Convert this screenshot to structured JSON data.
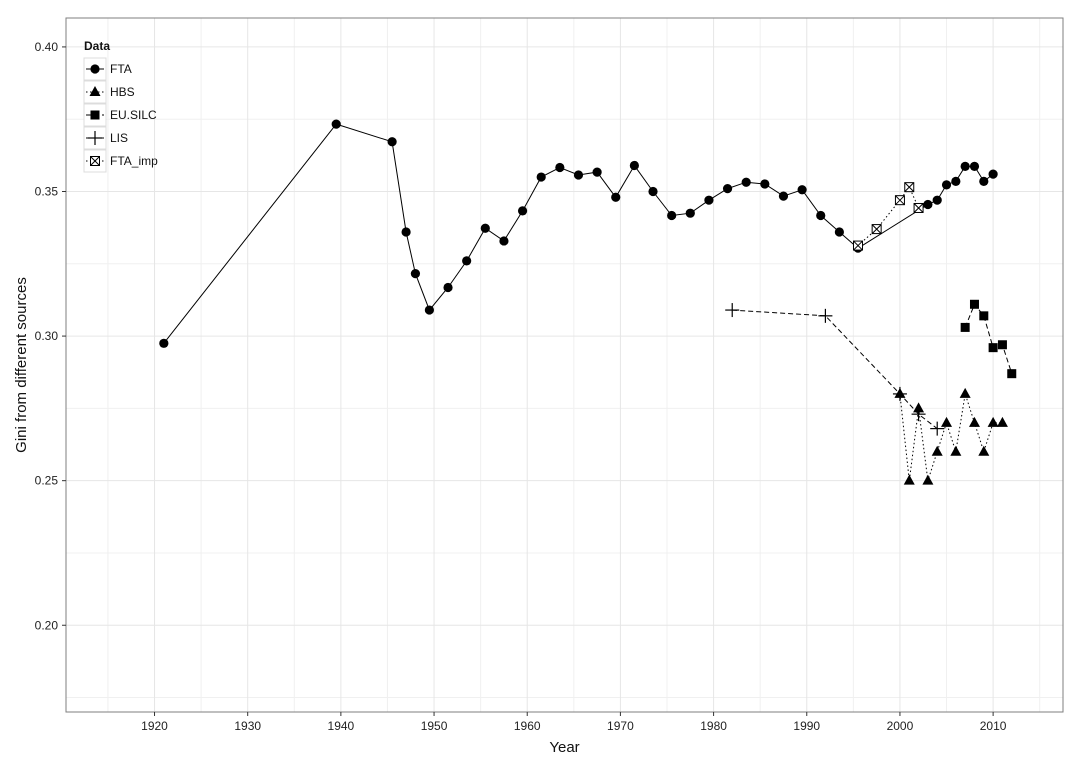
{
  "chart_data": {
    "type": "line",
    "title": "",
    "xlabel": "Year",
    "ylabel": "Gini from different sources",
    "xlim": [
      1911,
      1917.5
    ],
    "xlim_note": "",
    "x_range": [
      1910.5,
      2017.5
    ],
    "ylim": [
      0.17,
      0.41
    ],
    "xticks": [
      1920,
      1930,
      1940,
      1950,
      1960,
      1970,
      1980,
      1990,
      2000,
      2010
    ],
    "yticks": [
      0.2,
      0.25,
      0.3,
      0.35,
      0.4
    ],
    "ytick_labels": [
      "0.20",
      "0.25",
      "0.30",
      "0.35",
      "0.40"
    ],
    "grid": true,
    "legend": {
      "title": "Data",
      "placement": "top-left",
      "entries": [
        "FTA",
        "HBS",
        "EU.SILC",
        "LIS",
        "FTA_imp"
      ]
    },
    "series": [
      {
        "name": "FTA",
        "line": "solid",
        "marker": "circle",
        "points": [
          [
            1921,
            0.2975
          ],
          [
            1939.5,
            0.3733
          ],
          [
            1945.5,
            0.3672
          ],
          [
            1947,
            0.336
          ],
          [
            1948,
            0.3216
          ],
          [
            1949.5,
            0.309
          ],
          [
            1951.5,
            0.3168
          ],
          [
            1953.5,
            0.326
          ],
          [
            1955.5,
            0.3373
          ],
          [
            1957.5,
            0.3329
          ],
          [
            1959.5,
            0.3433
          ],
          [
            1961.5,
            0.355
          ],
          [
            1963.5,
            0.3583
          ],
          [
            1965.5,
            0.3557
          ],
          [
            1967.5,
            0.3567
          ],
          [
            1969.5,
            0.348
          ],
          [
            1971.5,
            0.359
          ],
          [
            1973.5,
            0.35
          ],
          [
            1975.5,
            0.3417
          ],
          [
            1977.5,
            0.3425
          ],
          [
            1979.5,
            0.347
          ],
          [
            1981.5,
            0.351
          ],
          [
            1983.5,
            0.3532
          ],
          [
            1985.5,
            0.3526
          ],
          [
            1987.5,
            0.3484
          ],
          [
            1989.5,
            0.3506
          ],
          [
            1991.5,
            0.3417
          ],
          [
            1993.5,
            0.336
          ],
          [
            1995.5,
            0.3304
          ],
          [
            2003,
            0.3455
          ],
          [
            2004,
            0.347
          ],
          [
            2005,
            0.3523
          ],
          [
            2006,
            0.3535
          ],
          [
            2007,
            0.3587
          ],
          [
            2008,
            0.3587
          ],
          [
            2009,
            0.3535
          ],
          [
            2010,
            0.356
          ]
        ]
      },
      {
        "name": "HBS",
        "line": "dotted",
        "marker": "triangle",
        "points": [
          [
            2000,
            0.28
          ],
          [
            2001,
            0.25
          ],
          [
            2002,
            0.275
          ],
          [
            2003,
            0.25
          ],
          [
            2004,
            0.26
          ],
          [
            2005,
            0.27
          ],
          [
            2006,
            0.26
          ],
          [
            2007,
            0.28
          ],
          [
            2008,
            0.27
          ],
          [
            2009,
            0.26
          ],
          [
            2010,
            0.27
          ],
          [
            2011,
            0.27
          ]
        ]
      },
      {
        "name": "EU.SILC",
        "line": "dashed",
        "marker": "square",
        "points": [
          [
            2007,
            0.303
          ],
          [
            2008,
            0.311
          ],
          [
            2009,
            0.307
          ],
          [
            2010,
            0.296
          ],
          [
            2011,
            0.297
          ],
          [
            2012,
            0.287
          ]
        ]
      },
      {
        "name": "LIS",
        "line": "dashed",
        "marker": "plus",
        "points": [
          [
            1982,
            0.309
          ],
          [
            1992,
            0.307
          ],
          [
            2000,
            0.28
          ],
          [
            2002,
            0.273
          ],
          [
            2004,
            0.268
          ]
        ]
      },
      {
        "name": "FTA_imp",
        "line": "dotted",
        "marker": "boxed-x",
        "points": [
          [
            1995.5,
            0.3313
          ],
          [
            1997.5,
            0.337
          ],
          [
            2000,
            0.347
          ],
          [
            2001,
            0.3515
          ],
          [
            2002,
            0.3443
          ]
        ]
      }
    ],
    "colors": {
      "ink": "#000000",
      "grid": "#e6e6e6",
      "panel_border": "#7f7f7f"
    }
  }
}
